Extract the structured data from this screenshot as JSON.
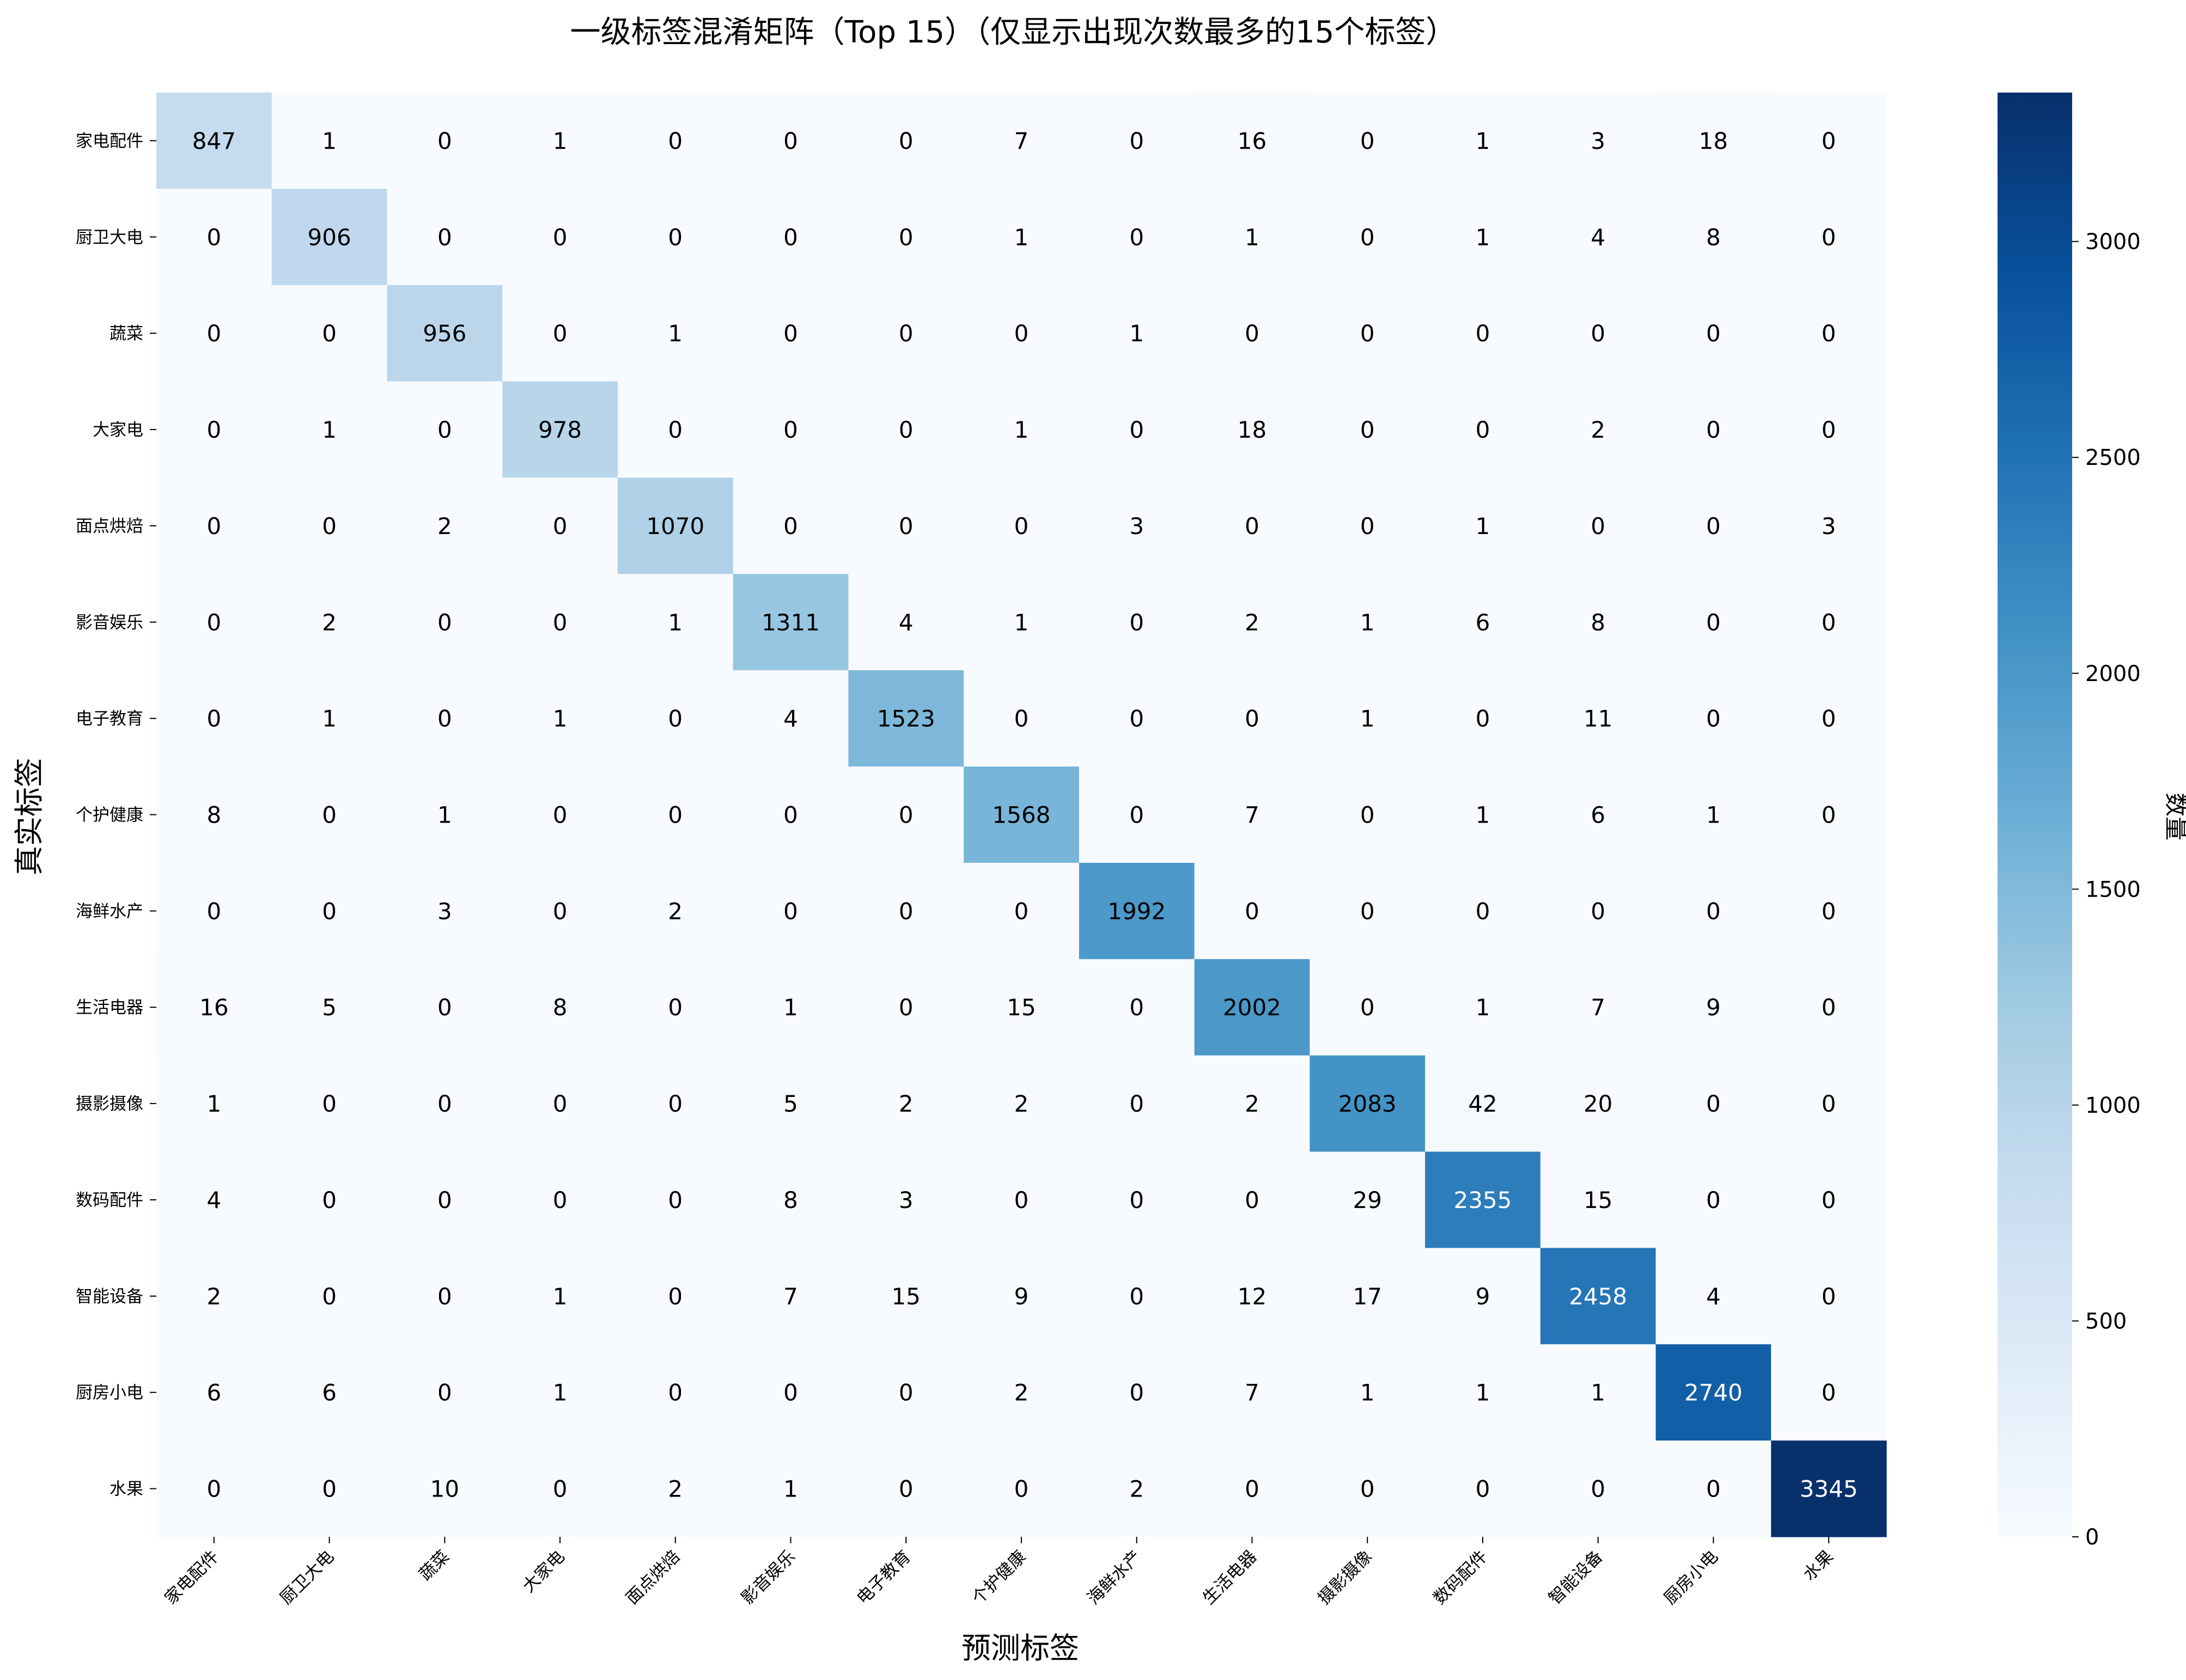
{
  "chart_data": {
    "type": "heatmap",
    "title": "一级标签混淆矩阵（Top 15）（仅显示出现次数最多的15个标签）",
    "xlabel": "预测标签",
    "ylabel": "真实标签",
    "rows": [
      "家电配件",
      "厨卫大电",
      "蔬菜",
      "大家电",
      "面点烘焙",
      "影音娱乐",
      "电子教育",
      "个护健康",
      "海鲜水产",
      "生活电器",
      "摄影摄像",
      "数码配件",
      "智能设备",
      "厨房小电",
      "水果"
    ],
    "columns": [
      "家电配件",
      "厨卫大电",
      "蔬菜",
      "大家电",
      "面点烘焙",
      "影音娱乐",
      "电子教育",
      "个护健康",
      "海鲜水产",
      "生活电器",
      "摄影摄像",
      "数码配件",
      "智能设备",
      "厨房小电",
      "水果"
    ],
    "values": [
      [
        847,
        1,
        0,
        1,
        0,
        0,
        0,
        7,
        0,
        16,
        0,
        1,
        3,
        18,
        0
      ],
      [
        0,
        906,
        0,
        0,
        0,
        0,
        0,
        1,
        0,
        1,
        0,
        1,
        4,
        8,
        0
      ],
      [
        0,
        0,
        956,
        0,
        1,
        0,
        0,
        0,
        1,
        0,
        0,
        0,
        0,
        0,
        0
      ],
      [
        0,
        1,
        0,
        978,
        0,
        0,
        0,
        1,
        0,
        18,
        0,
        0,
        2,
        0,
        0
      ],
      [
        0,
        0,
        2,
        0,
        1070,
        0,
        0,
        0,
        3,
        0,
        0,
        1,
        0,
        0,
        3
      ],
      [
        0,
        2,
        0,
        0,
        1,
        1311,
        4,
        1,
        0,
        2,
        1,
        6,
        8,
        0,
        0
      ],
      [
        0,
        1,
        0,
        1,
        0,
        4,
        1523,
        0,
        0,
        0,
        1,
        0,
        11,
        0,
        0
      ],
      [
        8,
        0,
        1,
        0,
        0,
        0,
        0,
        1568,
        0,
        7,
        0,
        1,
        6,
        1,
        0
      ],
      [
        0,
        0,
        3,
        0,
        2,
        0,
        0,
        0,
        1992,
        0,
        0,
        0,
        0,
        0,
        0
      ],
      [
        16,
        5,
        0,
        8,
        0,
        1,
        0,
        15,
        0,
        2002,
        0,
        1,
        7,
        9,
        0
      ],
      [
        1,
        0,
        0,
        0,
        0,
        5,
        2,
        2,
        0,
        2,
        2083,
        42,
        20,
        0,
        0
      ],
      [
        4,
        0,
        0,
        0,
        0,
        8,
        3,
        0,
        0,
        0,
        29,
        2355,
        15,
        0,
        0
      ],
      [
        2,
        0,
        0,
        1,
        0,
        7,
        15,
        9,
        0,
        12,
        17,
        9,
        2458,
        4,
        0
      ],
      [
        6,
        6,
        0,
        1,
        0,
        0,
        0,
        2,
        0,
        7,
        1,
        1,
        1,
        2740,
        0
      ],
      [
        0,
        0,
        10,
        0,
        2,
        1,
        0,
        0,
        2,
        0,
        0,
        0,
        0,
        0,
        3345
      ]
    ],
    "colorbar": {
      "label": "数量",
      "ticks": [
        0,
        500,
        1000,
        1500,
        2000,
        2500,
        3000
      ],
      "range": [
        0,
        3345
      ],
      "colormap": [
        "#f7fbff",
        "#deebf7",
        "#c6dbef",
        "#9ecae1",
        "#6baed6",
        "#4292c6",
        "#2171b5",
        "#08519c",
        "#08306b"
      ]
    },
    "legend": "colorbar-right",
    "grid": false
  }
}
